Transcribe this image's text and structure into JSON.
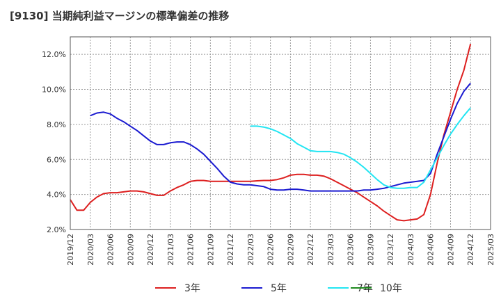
{
  "chart_data": {
    "type": "line",
    "title": "[9130]  当期純利益マージンの標準偏差の推移",
    "xlabel": "",
    "ylabel": "",
    "ylim": [
      2.0,
      13.0
    ],
    "y_ticks": [
      "2.0%",
      "4.0%",
      "6.0%",
      "8.0%",
      "10.0%",
      "12.0%"
    ],
    "y_tick_values": [
      2,
      4,
      6,
      8,
      10,
      12
    ],
    "x_range": [
      "2019-12",
      "2025-03"
    ],
    "x_ticks": [
      "2019/12",
      "2020/03",
      "2020/06",
      "2020/09",
      "2020/12",
      "2021/03",
      "2021/06",
      "2021/09",
      "2021/12",
      "2022/03",
      "2022/06",
      "2022/09",
      "2022/12",
      "2023/03",
      "2023/06",
      "2023/09",
      "2023/12",
      "2024/03",
      "2024/06",
      "2024/09",
      "2024/12",
      "2025/03"
    ],
    "grid": true,
    "legend_position": "bottom",
    "series": [
      {
        "name": "3年",
        "color": "#dd1f1f",
        "x": [
          "2019-12",
          "2020-01",
          "2020-02",
          "2020-03",
          "2020-04",
          "2020-05",
          "2020-06",
          "2020-07",
          "2020-08",
          "2020-09",
          "2020-10",
          "2020-11",
          "2020-12",
          "2021-01",
          "2021-02",
          "2021-03",
          "2021-04",
          "2021-05",
          "2021-06",
          "2021-07",
          "2021-08",
          "2021-09",
          "2021-10",
          "2021-11",
          "2021-12",
          "2022-01",
          "2022-02",
          "2022-03",
          "2022-04",
          "2022-05",
          "2022-06",
          "2022-07",
          "2022-08",
          "2022-09",
          "2022-10",
          "2022-11",
          "2022-12",
          "2023-01",
          "2023-02",
          "2023-03",
          "2023-04",
          "2023-05",
          "2023-06",
          "2023-07",
          "2023-08",
          "2023-09",
          "2023-10",
          "2023-11",
          "2023-12",
          "2024-01",
          "2024-02",
          "2024-03",
          "2024-04",
          "2024-05",
          "2024-06",
          "2024-07",
          "2024-08",
          "2024-09",
          "2024-10",
          "2024-11",
          "2024-12"
        ],
        "values": [
          3.7,
          3.1,
          3.1,
          3.55,
          3.85,
          4.05,
          4.1,
          4.1,
          4.15,
          4.2,
          4.2,
          4.15,
          4.05,
          3.95,
          3.95,
          4.2,
          4.4,
          4.55,
          4.75,
          4.8,
          4.8,
          4.75,
          4.75,
          4.75,
          4.75,
          4.75,
          4.75,
          4.75,
          4.78,
          4.8,
          4.8,
          4.85,
          4.95,
          5.1,
          5.15,
          5.15,
          5.1,
          5.1,
          5.05,
          4.9,
          4.7,
          4.5,
          4.3,
          4.1,
          3.85,
          3.6,
          3.35,
          3.05,
          2.8,
          2.55,
          2.5,
          2.55,
          2.6,
          2.85,
          4.0,
          5.8,
          7.4,
          8.7,
          10.0,
          11.1,
          12.6
        ]
      },
      {
        "name": "5年",
        "color": "#1a1ad0",
        "x": [
          "2020-03",
          "2020-04",
          "2020-05",
          "2020-06",
          "2020-07",
          "2020-08",
          "2020-09",
          "2020-10",
          "2020-11",
          "2020-12",
          "2021-01",
          "2021-02",
          "2021-03",
          "2021-04",
          "2021-05",
          "2021-06",
          "2021-07",
          "2021-08",
          "2021-09",
          "2021-10",
          "2021-11",
          "2021-12",
          "2022-01",
          "2022-02",
          "2022-03",
          "2022-04",
          "2022-05",
          "2022-06",
          "2022-07",
          "2022-08",
          "2022-09",
          "2022-10",
          "2022-11",
          "2022-12",
          "2023-01",
          "2023-02",
          "2023-03",
          "2023-04",
          "2023-05",
          "2023-06",
          "2023-07",
          "2023-08",
          "2023-09",
          "2023-10",
          "2023-11",
          "2023-12",
          "2024-01",
          "2024-02",
          "2024-03",
          "2024-04",
          "2024-05",
          "2024-06",
          "2024-07",
          "2024-08",
          "2024-09",
          "2024-10",
          "2024-11",
          "2024-12"
        ],
        "values": [
          8.5,
          8.65,
          8.7,
          8.6,
          8.35,
          8.15,
          7.9,
          7.65,
          7.35,
          7.05,
          6.85,
          6.85,
          6.95,
          7.0,
          7.0,
          6.85,
          6.6,
          6.3,
          5.9,
          5.5,
          5.05,
          4.7,
          4.6,
          4.55,
          4.55,
          4.5,
          4.45,
          4.3,
          4.25,
          4.25,
          4.3,
          4.3,
          4.25,
          4.2,
          4.2,
          4.2,
          4.2,
          4.2,
          4.2,
          4.2,
          4.2,
          4.25,
          4.25,
          4.3,
          4.35,
          4.45,
          4.55,
          4.65,
          4.7,
          4.75,
          4.8,
          5.2,
          6.3,
          7.3,
          8.3,
          9.2,
          9.9,
          10.35
        ]
      },
      {
        "name": "7年",
        "color": "#22e5f2",
        "x": [
          "2022-03",
          "2022-04",
          "2022-05",
          "2022-06",
          "2022-07",
          "2022-08",
          "2022-09",
          "2022-10",
          "2022-11",
          "2022-12",
          "2023-01",
          "2023-02",
          "2023-03",
          "2023-04",
          "2023-05",
          "2023-06",
          "2023-07",
          "2023-08",
          "2023-09",
          "2023-10",
          "2023-11",
          "2023-12",
          "2024-01",
          "2024-02",
          "2024-03",
          "2024-04",
          "2024-05",
          "2024-06",
          "2024-07",
          "2024-08",
          "2024-09",
          "2024-10",
          "2024-11",
          "2024-12"
        ],
        "values": [
          7.9,
          7.9,
          7.85,
          7.75,
          7.6,
          7.4,
          7.2,
          6.9,
          6.7,
          6.5,
          6.45,
          6.45,
          6.45,
          6.4,
          6.3,
          6.1,
          5.85,
          5.55,
          5.2,
          4.85,
          4.55,
          4.4,
          4.35,
          4.35,
          4.4,
          4.4,
          4.7,
          5.4,
          6.1,
          6.8,
          7.45,
          8.0,
          8.5,
          8.95
        ]
      },
      {
        "name": "10年",
        "color": "#1f8a1f",
        "x": [],
        "values": []
      }
    ]
  }
}
